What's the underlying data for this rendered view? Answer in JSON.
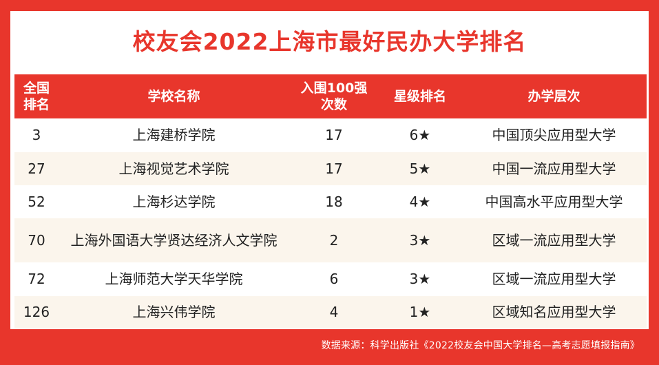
{
  "title": "校友会2022上海市最好民办大学排名",
  "headers": {
    "rank": "全国\n排名",
    "school": "学校名称",
    "count": "入围100强\n次数",
    "star": "星级排名",
    "level": "办学层次"
  },
  "rows": [
    {
      "rank": "3",
      "school": "上海建桥学院",
      "count": "17",
      "star": "6★",
      "level": "中国顶尖应用型大学"
    },
    {
      "rank": "27",
      "school": "上海视觉艺术学院",
      "count": "17",
      "star": "5★",
      "level": "中国一流应用型大学"
    },
    {
      "rank": "52",
      "school": "上海杉达学院",
      "count": "18",
      "star": "4★",
      "level": "中国高水平应用型大学"
    },
    {
      "rank": "70",
      "school": "上海外国语大学贤达经济人文学院",
      "count": "2",
      "star": "3★",
      "level": "区域一流应用型大学"
    },
    {
      "rank": "72",
      "school": "上海师范大学天华学院",
      "count": "6",
      "star": "3★",
      "level": "区域一流应用型大学"
    },
    {
      "rank": "126",
      "school": "上海兴伟学院",
      "count": "4",
      "star": "1★",
      "level": "区域知名应用型大学"
    }
  ],
  "footer": "数据来源：科学出版社《2022校友会中国大学排名—高考志愿填报指南》"
}
